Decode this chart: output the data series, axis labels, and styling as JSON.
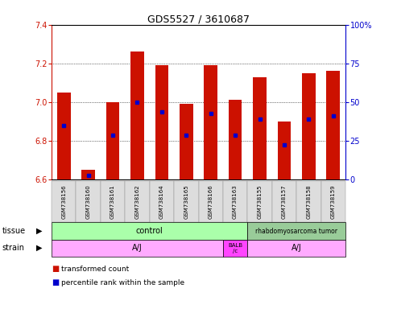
{
  "title": "GDS5527 / 3610687",
  "samples": [
    "GSM738156",
    "GSM738160",
    "GSM738161",
    "GSM738162",
    "GSM738164",
    "GSM738165",
    "GSM738166",
    "GSM738163",
    "GSM738155",
    "GSM738157",
    "GSM738158",
    "GSM738159"
  ],
  "bar_values": [
    7.05,
    6.65,
    7.0,
    7.26,
    7.19,
    6.99,
    7.19,
    7.01,
    7.13,
    6.9,
    7.15,
    7.16
  ],
  "bar_base": 6.6,
  "blue_values": [
    6.88,
    6.62,
    6.83,
    7.0,
    6.95,
    6.83,
    6.94,
    6.83,
    6.91,
    6.78,
    6.91,
    6.93
  ],
  "ylim_left": [
    6.6,
    7.4
  ],
  "ylim_right": [
    0,
    100
  ],
  "yticks_left": [
    6.6,
    6.8,
    7.0,
    7.2,
    7.4
  ],
  "yticks_right": [
    0,
    25,
    50,
    75,
    100
  ],
  "bar_color": "#cc1100",
  "blue_color": "#0000cc",
  "bg_color": "#ffffff",
  "tissue_control_color": "#aaffaa",
  "tissue_tumor_color": "#99cc99",
  "strain_aj_color": "#ffaaff",
  "strain_balb_color": "#ff44ff",
  "left_axis_color": "#cc1100",
  "right_axis_color": "#0000cc",
  "bar_width": 0.55,
  "legend_items": [
    {
      "color": "#cc1100",
      "label": "transformed count"
    },
    {
      "color": "#0000cc",
      "label": "percentile rank within the sample"
    }
  ]
}
